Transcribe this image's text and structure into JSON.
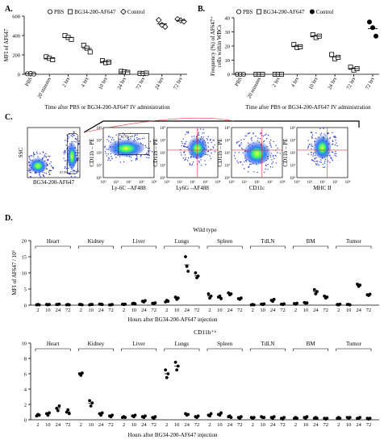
{
  "panel_labels": {
    "a": "A.",
    "b": "B.",
    "c": "C.",
    "d": "D."
  },
  "chart_data": [
    {
      "id": "A",
      "type": "scatter",
      "title": "",
      "ylabel": "MFI of AF647",
      "xlabel": "Time after PBS or BG34-200-AF647 IV administration",
      "ylim": [
        0,
        600
      ],
      "yticks": [
        0,
        200,
        400,
        600
      ],
      "categories": [
        "PBS",
        "20 minutes",
        "2 hrs",
        "4 hrs",
        "10 hrs",
        "24 hrs",
        "72 hrs",
        "24 hrs",
        "72 hrs"
      ],
      "legend": [
        {
          "name": "PBS",
          "marker": "circle"
        },
        {
          "name": "BG34-200-AF647",
          "marker": "square"
        },
        {
          "name": "Control",
          "marker": "diamond"
        }
      ],
      "series": [
        {
          "name": "PBS",
          "marker": "circle",
          "points": [
            {
              "c": 0,
              "v": [
                5,
                8,
                3
              ]
            }
          ]
        },
        {
          "name": "BG34-200-AF647",
          "marker": "square",
          "points": [
            {
              "c": 1,
              "v": [
                180,
                165,
                150
              ]
            },
            {
              "c": 2,
              "v": [
                400,
                380,
                360
              ]
            },
            {
              "c": 3,
              "v": [
                300,
                270,
                230
              ]
            },
            {
              "c": 4,
              "v": [
                140,
                120,
                125
              ]
            },
            {
              "c": 5,
              "v": [
                30,
                25,
                20
              ]
            },
            {
              "c": 6,
              "v": [
                10,
                8,
                12
              ]
            }
          ]
        },
        {
          "name": "Control",
          "marker": "diamond",
          "points": [
            {
              "c": 7,
              "v": [
                560,
                510,
                490
              ]
            },
            {
              "c": 8,
              "v": [
                570,
                555,
                545
              ]
            }
          ]
        }
      ]
    },
    {
      "id": "B",
      "type": "scatter",
      "ylabel": "Frequency (%) of AF647⁺ cells within WBCs",
      "xlabel": "Time after PBS or BG34-200-AF647 IV administration",
      "ylim": [
        0,
        40
      ],
      "yticks": [
        0,
        10,
        20,
        30,
        40
      ],
      "categories": [
        "PBS",
        "20 minutes",
        "2 hrs",
        "4 hrs",
        "10 hrs",
        "24 hrs",
        "72 hrs",
        "72 hrs"
      ],
      "legend": [
        {
          "name": "PBS",
          "marker": "circle"
        },
        {
          "name": "BG34-200-AF647",
          "marker": "square"
        },
        {
          "name": "Control",
          "marker": "filled-circle"
        }
      ],
      "series": [
        {
          "name": "PBS",
          "marker": "circle",
          "points": [
            {
              "c": 0,
              "v": [
                0,
                0,
                0
              ]
            }
          ]
        },
        {
          "name": "BG34-200-AF647",
          "marker": "square",
          "points": [
            {
              "c": 1,
              "v": [
                0,
                0,
                0
              ]
            },
            {
              "c": 2,
              "v": [
                0,
                0,
                0
              ]
            },
            {
              "c": 3,
              "v": [
                21,
                19,
                19.5
              ]
            },
            {
              "c": 4,
              "v": [
                28,
                26,
                27
              ]
            },
            {
              "c": 5,
              "v": [
                14,
                11,
                12
              ]
            },
            {
              "c": 6,
              "v": [
                5,
                3,
                4
              ]
            }
          ]
        },
        {
          "name": "Control",
          "marker": "filled-circle",
          "points": [
            {
              "c": 7,
              "v": [
                37,
                33,
                27
              ]
            }
          ]
        }
      ]
    },
    {
      "id": "D1",
      "type": "scatter",
      "title": "Wild type",
      "ylabel": "MFI of AF647 / 10³",
      "xlabel": "Hours after BG34-200-AF647 injection",
      "ylim": [
        0,
        20
      ],
      "yticks": [
        0,
        5,
        10,
        15,
        20
      ],
      "groups": [
        "Heart",
        "Kidney",
        "Liver",
        "Lungs",
        "Spleen",
        "TdLN",
        "BM",
        "Tumor"
      ],
      "time_labels": [
        "2",
        "10",
        "24",
        "72"
      ],
      "values": [
        [
          [
            0.1,
            0.2,
            0.1
          ],
          [
            0.2,
            0.1,
            0.2
          ],
          [
            0.2,
            0.2,
            0.3
          ],
          [
            0.1,
            0.2,
            0.1
          ]
        ],
        [
          [
            0.2,
            0.2,
            0.1
          ],
          [
            0.1,
            0.2,
            0.2
          ],
          [
            0.3,
            0.3,
            0.2
          ],
          [
            0.1,
            0.1,
            0.2
          ]
        ],
        [
          [
            0.3,
            0.2,
            0.3
          ],
          [
            0.5,
            0.6,
            0.4
          ],
          [
            1.2,
            1.0,
            1.4
          ],
          [
            0.6,
            0.5,
            0.7
          ]
        ],
        [
          [
            1.0,
            1.5,
            1.2
          ],
          [
            2.5,
            1.8,
            2.2
          ],
          [
            15.0,
            12.0,
            10.5
          ],
          [
            10.0,
            8.5,
            9.0
          ]
        ],
        [
          [
            3.5,
            2.2,
            2.8
          ],
          [
            2.5,
            2.8,
            2.0
          ],
          [
            3.8,
            3.2,
            3.5
          ],
          [
            2.0,
            1.8,
            2.2
          ]
        ],
        [
          [
            0.1,
            0.2,
            0.1
          ],
          [
            0.3,
            0.2,
            0.4
          ],
          [
            1.5,
            1.2,
            1.8
          ],
          [
            0.3,
            0.2,
            0.4
          ]
        ],
        [
          [
            0.5,
            0.3,
            0.6
          ],
          [
            0.8,
            0.6,
            0.7
          ],
          [
            4.8,
            3.5,
            4.2
          ],
          [
            2.8,
            2.2,
            2.5
          ]
        ],
        [
          [
            0.2,
            0.1,
            0.3
          ],
          [
            0.2,
            0.2,
            0.1
          ],
          [
            6.5,
            5.8,
            6.2
          ],
          [
            3.2,
            3.0,
            3.4
          ]
        ]
      ]
    },
    {
      "id": "D2",
      "type": "scatter",
      "title": "CD11b⁺ʰ",
      "ylabel": "",
      "xlabel": "Hours after BG34-200-AF647 injection",
      "ylim": [
        0,
        10
      ],
      "yticks": [
        0,
        2,
        4,
        6,
        8,
        10
      ],
      "groups": [
        "Heart",
        "Kidney",
        "Liver",
        "Lungs",
        "Spleen",
        "TdLN",
        "BM",
        "Tumor"
      ],
      "time_labels": [
        "2",
        "10",
        "24",
        "72"
      ],
      "values": [
        [
          [
            0.5,
            0.7,
            0.6
          ],
          [
            0.8,
            0.6,
            0.9
          ],
          [
            1.5,
            1.2,
            1.8
          ],
          [
            1.0,
            1.3,
            0.8
          ]
        ],
        [
          [
            6.0,
            5.8,
            6.1
          ],
          [
            2.5,
            1.8,
            2.2
          ],
          [
            0.8,
            0.6,
            0.9
          ],
          [
            0.5,
            0.4,
            0.6
          ]
        ],
        [
          [
            0.3,
            0.4,
            0.3
          ],
          [
            0.5,
            0.4,
            0.6
          ],
          [
            0.4,
            0.3,
            0.5
          ],
          [
            0.3,
            0.2,
            0.4
          ]
        ],
        [
          [
            6.5,
            5.5,
            6.0
          ],
          [
            7.5,
            6.5,
            7.0
          ],
          [
            0.8,
            0.6,
            0.7
          ],
          [
            0.4,
            0.3,
            0.5
          ]
        ],
        [
          [
            0.6,
            0.5,
            0.8
          ],
          [
            0.7,
            0.6,
            0.9
          ],
          [
            0.4,
            0.5,
            0.3
          ],
          [
            0.3,
            0.2,
            0.4
          ]
        ],
        [
          [
            0.3,
            0.2,
            0.3
          ],
          [
            0.4,
            0.3,
            0.3
          ],
          [
            0.3,
            0.2,
            0.4
          ],
          [
            0.2,
            0.1,
            0.3
          ]
        ],
        [
          [
            0.2,
            0.3,
            0.2
          ],
          [
            0.3,
            0.2,
            0.4
          ],
          [
            0.2,
            0.3,
            0.2
          ],
          [
            0.2,
            0.1,
            0.2
          ]
        ],
        [
          [
            0.2,
            0.3,
            0.2
          ],
          [
            0.3,
            0.2,
            0.3
          ],
          [
            0.2,
            0.2,
            0.3
          ],
          [
            0.2,
            0.1,
            0.2
          ]
        ]
      ]
    }
  ],
  "flow": {
    "plots": [
      {
        "ylabel": "SSC",
        "xlabel": "BG34-200-AF647",
        "gate": "87.9%"
      },
      {
        "ylabel": "CD11b – PE",
        "xlabel": "Ly-6C –AF488",
        "gate": "92.8%"
      },
      {
        "ylabel": "CD11b – PE",
        "xlabel": "Ly6G –AF488"
      },
      {
        "ylabel": "CD11b – PE",
        "xlabel": "CD11c"
      },
      {
        "ylabel": "CD11b – PE",
        "xlabel": "MHC II"
      }
    ],
    "ticks": [
      "10⁰",
      "10¹",
      "10²",
      "10³",
      "10⁴"
    ]
  }
}
